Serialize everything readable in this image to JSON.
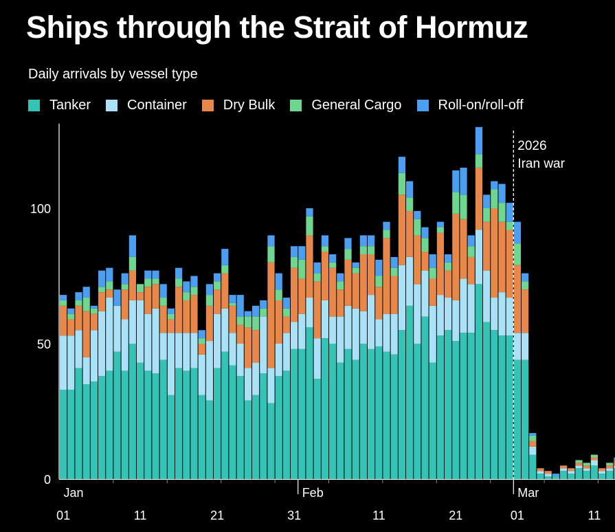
{
  "title": "Ships through the Strait of Hormuz",
  "subtitle": "Daily arrivals by vessel type",
  "colors": {
    "Tanker": "#35c3b5",
    "Container": "#a9e1f7",
    "Dry Bulk": "#e8874a",
    "General Cargo": "#6fd690",
    "Roll-on/roll-off": "#4c9ef0"
  },
  "chart_data": {
    "type": "bar",
    "stacked": true,
    "title": "Ships through the Strait of Hormuz",
    "subtitle": "Daily arrivals by vessel type",
    "ylim": [
      0,
      130
    ],
    "yticks": [
      0,
      50,
      100
    ],
    "x_tick_labels": [
      "01",
      "11",
      "21",
      "31",
      "11",
      "21",
      "01",
      "11"
    ],
    "x_tick_day_index": [
      0,
      10,
      20,
      30,
      41,
      51,
      59,
      69
    ],
    "month_labels": [
      {
        "label": "Jan",
        "day_index": 0
      },
      {
        "label": "Feb",
        "day_index": 31
      },
      {
        "label": "Mar",
        "day_index": 59
      }
    ],
    "annotation": {
      "lines": [
        "2026",
        "Iran war"
      ],
      "day_index": 59
    },
    "series_order": [
      "Tanker",
      "Container",
      "Dry Bulk",
      "General Cargo",
      "Roll-on/roll-off"
    ],
    "totals": [
      68,
      63,
      69,
      71,
      64,
      77,
      78,
      70,
      76,
      90,
      72,
      77,
      77,
      72,
      63,
      78,
      73,
      75,
      55,
      72,
      76,
      85,
      68,
      68,
      62,
      64,
      66,
      90,
      76,
      67,
      86,
      86,
      100,
      80,
      90,
      83,
      76,
      89,
      80,
      90,
      90,
      81,
      95,
      82,
      119,
      110,
      99,
      93,
      83,
      95,
      83,
      114,
      115,
      90,
      130,
      105,
      110,
      109,
      102,
      95,
      76,
      17,
      4,
      3,
      2,
      5,
      4,
      7,
      6,
      9,
      4,
      6,
      8,
      3,
      3,
      9
    ],
    "series": [
      {
        "name": "Tanker",
        "values": [
          33,
          33,
          41,
          35,
          36,
          38,
          40,
          47,
          40,
          50,
          43,
          40,
          39,
          44,
          31,
          41,
          40,
          41,
          31,
          29,
          41,
          47,
          42,
          38,
          29,
          31,
          39,
          28,
          38,
          40,
          48,
          48,
          56,
          37,
          52,
          50,
          43,
          48,
          44,
          50,
          48,
          49,
          47,
          46,
          55,
          64,
          50,
          60,
          43,
          53,
          55,
          51,
          54,
          54,
          72,
          58,
          55,
          53,
          53,
          44,
          44,
          9,
          2,
          1,
          1,
          3,
          2,
          4,
          3,
          5,
          2,
          3,
          4,
          2,
          2,
          5
        ]
      },
      {
        "name": "Container",
        "values": [
          20,
          20,
          14,
          10,
          19,
          24,
          27,
          17,
          19,
          16,
          23,
          21,
          24,
          10,
          23,
          13,
          14,
          13,
          15,
          22,
          20,
          16,
          12,
          12,
          12,
          12,
          21,
          13,
          12,
          14,
          10,
          13,
          11,
          15,
          14,
          10,
          17,
          16,
          19,
          12,
          20,
          10,
          14,
          15,
          24,
          18,
          22,
          17,
          21,
          15,
          12,
          15,
          20,
          18,
          20,
          19,
          12,
          16,
          14,
          10,
          10,
          3,
          1,
          1,
          0,
          1,
          1,
          1,
          1,
          2,
          1,
          1,
          1,
          1,
          1,
          1
        ]
      },
      {
        "name": "Dry Bulk",
        "values": [
          11,
          6,
          9,
          17,
          6,
          7,
          3,
          0,
          11,
          11,
          3,
          10,
          9,
          10,
          5,
          17,
          12,
          14,
          4,
          13,
          9,
          13,
          10,
          7,
          15,
          12,
          0,
          39,
          16,
          6,
          20,
          13,
          23,
          21,
          18,
          18,
          10,
          17,
          13,
          21,
          15,
          12,
          28,
          14,
          26,
          17,
          18,
          7,
          10,
          23,
          10,
          32,
          22,
          10,
          23,
          18,
          33,
          26,
          25,
          25,
          16,
          2,
          1,
          1,
          0,
          1,
          1,
          1,
          1,
          1,
          1,
          1,
          2,
          0,
          0,
          2
        ]
      },
      {
        "name": "General Cargo",
        "values": [
          2,
          2,
          2,
          5,
          2,
          2,
          3,
          0,
          2,
          5,
          3,
          3,
          2,
          3,
          2,
          3,
          3,
          3,
          2,
          4,
          3,
          3,
          1,
          3,
          4,
          5,
          3,
          6,
          4,
          3,
          4,
          7,
          7,
          3,
          2,
          2,
          3,
          4,
          2,
          3,
          3,
          4,
          3,
          3,
          8,
          5,
          6,
          5,
          4,
          2,
          3,
          8,
          9,
          4,
          5,
          5,
          7,
          7,
          3,
          8,
          3,
          2,
          0,
          0,
          0,
          0,
          0,
          1,
          1,
          1,
          0,
          1,
          0,
          0,
          0,
          1
        ]
      },
      {
        "name": "Roll-on/roll-off",
        "values": [
          2,
          2,
          3,
          4,
          1,
          6,
          5,
          6,
          4,
          8,
          0,
          3,
          3,
          5,
          2,
          4,
          4,
          4,
          3,
          4,
          3,
          6,
          3,
          8,
          2,
          4,
          3,
          4,
          6,
          4,
          4,
          5,
          3,
          4,
          4,
          3,
          3,
          4,
          2,
          4,
          4,
          6,
          3,
          4,
          6,
          6,
          3,
          4,
          5,
          2,
          3,
          8,
          10,
          4,
          10,
          5,
          3,
          7,
          7,
          8,
          3,
          1,
          0,
          0,
          1,
          0,
          0,
          0,
          0,
          0,
          0,
          0,
          1,
          0,
          0,
          0
        ]
      }
    ]
  }
}
